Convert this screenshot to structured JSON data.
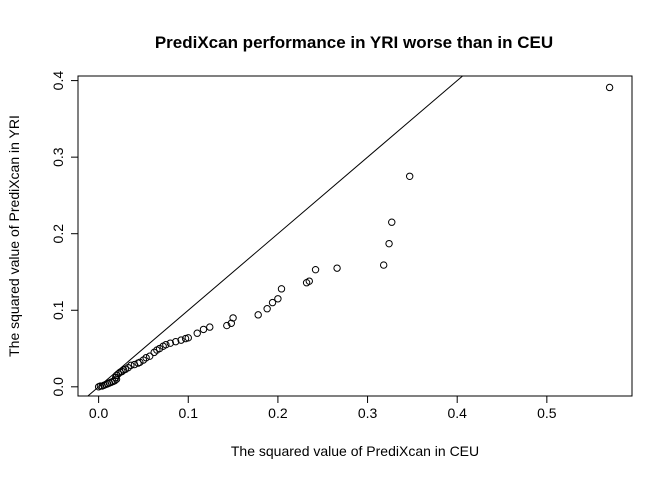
{
  "chart_data": {
    "type": "scatter",
    "title": "PrediXcan performance in YRI worse than in CEU",
    "xlabel": "The squared value of PrediXcan in CEU",
    "ylabel": "The squared value of PrediXcan in YRI",
    "xlim": [
      -0.023,
      0.595
    ],
    "ylim": [
      -0.012,
      0.406
    ],
    "xticks": [
      0.0,
      0.1,
      0.2,
      0.3,
      0.4,
      0.5
    ],
    "yticks": [
      0.0,
      0.1,
      0.2,
      0.3,
      0.4
    ],
    "xtick_labels": [
      "0.0",
      "0.1",
      "0.2",
      "0.3",
      "0.4",
      "0.5"
    ],
    "ytick_labels": [
      "0.0",
      "0.1",
      "0.2",
      "0.3",
      "0.4"
    ],
    "grid": false,
    "reference_line": {
      "intercept": 0,
      "slope": 1
    },
    "points": [
      {
        "x": 0.0,
        "y": 0.0
      },
      {
        "x": 0.002,
        "y": 0.001
      },
      {
        "x": 0.004,
        "y": 0.001
      },
      {
        "x": 0.006,
        "y": 0.002
      },
      {
        "x": 0.008,
        "y": 0.003
      },
      {
        "x": 0.01,
        "y": 0.004
      },
      {
        "x": 0.012,
        "y": 0.005
      },
      {
        "x": 0.014,
        "y": 0.006
      },
      {
        "x": 0.016,
        "y": 0.007
      },
      {
        "x": 0.018,
        "y": 0.008
      },
      {
        "x": 0.02,
        "y": 0.01
      },
      {
        "x": 0.019,
        "y": 0.012
      },
      {
        "x": 0.02,
        "y": 0.015
      },
      {
        "x": 0.022,
        "y": 0.017
      },
      {
        "x": 0.024,
        "y": 0.019
      },
      {
        "x": 0.026,
        "y": 0.02
      },
      {
        "x": 0.028,
        "y": 0.022
      },
      {
        "x": 0.03,
        "y": 0.023
      },
      {
        "x": 0.033,
        "y": 0.025
      },
      {
        "x": 0.036,
        "y": 0.028
      },
      {
        "x": 0.04,
        "y": 0.029
      },
      {
        "x": 0.044,
        "y": 0.031
      },
      {
        "x": 0.046,
        "y": 0.032
      },
      {
        "x": 0.05,
        "y": 0.035
      },
      {
        "x": 0.053,
        "y": 0.038
      },
      {
        "x": 0.057,
        "y": 0.04
      },
      {
        "x": 0.062,
        "y": 0.045
      },
      {
        "x": 0.065,
        "y": 0.048
      },
      {
        "x": 0.068,
        "y": 0.05
      },
      {
        "x": 0.072,
        "y": 0.053
      },
      {
        "x": 0.075,
        "y": 0.055
      },
      {
        "x": 0.08,
        "y": 0.057
      },
      {
        "x": 0.086,
        "y": 0.059
      },
      {
        "x": 0.092,
        "y": 0.061
      },
      {
        "x": 0.097,
        "y": 0.063
      },
      {
        "x": 0.1,
        "y": 0.064
      },
      {
        "x": 0.11,
        "y": 0.07
      },
      {
        "x": 0.117,
        "y": 0.075
      },
      {
        "x": 0.124,
        "y": 0.078
      },
      {
        "x": 0.143,
        "y": 0.08
      },
      {
        "x": 0.148,
        "y": 0.083
      },
      {
        "x": 0.15,
        "y": 0.09
      },
      {
        "x": 0.178,
        "y": 0.094
      },
      {
        "x": 0.188,
        "y": 0.102
      },
      {
        "x": 0.194,
        "y": 0.11
      },
      {
        "x": 0.2,
        "y": 0.115
      },
      {
        "x": 0.204,
        "y": 0.128
      },
      {
        "x": 0.232,
        "y": 0.136
      },
      {
        "x": 0.235,
        "y": 0.138
      },
      {
        "x": 0.242,
        "y": 0.153
      },
      {
        "x": 0.266,
        "y": 0.155
      },
      {
        "x": 0.318,
        "y": 0.159
      },
      {
        "x": 0.324,
        "y": 0.187
      },
      {
        "x": 0.327,
        "y": 0.215
      },
      {
        "x": 0.347,
        "y": 0.275
      },
      {
        "x": 0.57,
        "y": 0.391
      }
    ]
  }
}
